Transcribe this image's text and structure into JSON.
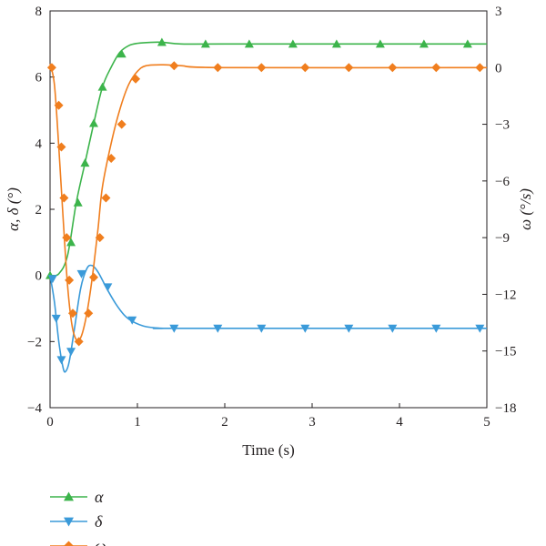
{
  "chart_data": {
    "type": "line",
    "xlabel": "Time (s)",
    "ylabel_left": "α, δ (°)",
    "ylabel_right": "ω (°/s)",
    "xlim": [
      0,
      5
    ],
    "ylim_left": [
      -4,
      8
    ],
    "ylim_right": [
      -18,
      3
    ],
    "x_ticks": [
      "0",
      "1",
      "2",
      "3",
      "4",
      "5"
    ],
    "y_left_ticks": [
      "−4",
      "−2",
      "0",
      "2",
      "4",
      "6",
      "8"
    ],
    "y_right_ticks": [
      "−18",
      "−15",
      "−12",
      "−9",
      "−6",
      "−3",
      "0",
      "3"
    ],
    "grid": false,
    "legend_position": "below plot, left",
    "series": [
      {
        "name": "α",
        "axis": "left",
        "color": "#3cb44b",
        "marker": "triangle-up",
        "curve": [
          [
            0,
            0
          ],
          [
            0.1,
            0.05
          ],
          [
            0.2,
            0.6
          ],
          [
            0.3,
            2.2
          ],
          [
            0.4,
            3.4
          ],
          [
            0.5,
            4.6
          ],
          [
            0.6,
            5.7
          ],
          [
            0.7,
            6.3
          ],
          [
            0.8,
            6.75
          ],
          [
            0.9,
            6.95
          ],
          [
            1.0,
            7.02
          ],
          [
            1.15,
            7.05
          ],
          [
            1.3,
            7.05
          ],
          [
            1.5,
            7.0
          ],
          [
            2.0,
            7.0
          ],
          [
            5.0,
            7.0
          ]
        ],
        "markers": [
          [
            0,
            0
          ],
          [
            0.24,
            1.0
          ],
          [
            0.32,
            2.2
          ],
          [
            0.4,
            3.4
          ],
          [
            0.5,
            4.6
          ],
          [
            0.6,
            5.7
          ],
          [
            0.82,
            6.7
          ],
          [
            1.28,
            7.05
          ],
          [
            1.78,
            7.0
          ],
          [
            2.28,
            7.0
          ],
          [
            2.78,
            7.0
          ],
          [
            3.28,
            7.0
          ],
          [
            3.78,
            7.0
          ],
          [
            4.28,
            7.0
          ],
          [
            4.78,
            7.0
          ]
        ]
      },
      {
        "name": "δ",
        "axis": "left",
        "color": "#3a9ad9",
        "marker": "triangle-down",
        "curve": [
          [
            0,
            0
          ],
          [
            0.05,
            -0.8
          ],
          [
            0.1,
            -2.0
          ],
          [
            0.15,
            -2.8
          ],
          [
            0.18,
            -2.9
          ],
          [
            0.22,
            -2.6
          ],
          [
            0.28,
            -1.6
          ],
          [
            0.35,
            -0.4
          ],
          [
            0.42,
            0.2
          ],
          [
            0.48,
            0.3
          ],
          [
            0.55,
            0.1
          ],
          [
            0.65,
            -0.4
          ],
          [
            0.75,
            -0.85
          ],
          [
            0.85,
            -1.2
          ],
          [
            0.95,
            -1.4
          ],
          [
            1.1,
            -1.55
          ],
          [
            1.3,
            -1.6
          ],
          [
            1.5,
            -1.6
          ],
          [
            5.0,
            -1.6
          ]
        ],
        "markers": [
          [
            0.03,
            -0.1
          ],
          [
            0.07,
            -1.3
          ],
          [
            0.13,
            -2.55
          ],
          [
            0.24,
            -2.3
          ],
          [
            0.36,
            0.05
          ],
          [
            0.66,
            -0.35
          ],
          [
            0.94,
            -1.35
          ],
          [
            1.42,
            -1.6
          ],
          [
            1.92,
            -1.6
          ],
          [
            2.42,
            -1.6
          ],
          [
            2.92,
            -1.6
          ],
          [
            3.42,
            -1.6
          ],
          [
            3.92,
            -1.6
          ],
          [
            4.42,
            -1.6
          ],
          [
            4.92,
            -1.6
          ]
        ]
      },
      {
        "name": "ω",
        "axis": "right",
        "color": "#f07e1e",
        "marker": "diamond",
        "curve": [
          [
            0,
            0.2
          ],
          [
            0.05,
            -0.9
          ],
          [
            0.1,
            -4.2
          ],
          [
            0.15,
            -8.0
          ],
          [
            0.2,
            -11.5
          ],
          [
            0.25,
            -13.6
          ],
          [
            0.3,
            -14.4
          ],
          [
            0.35,
            -14.3
          ],
          [
            0.4,
            -13.5
          ],
          [
            0.45,
            -12.2
          ],
          [
            0.5,
            -10.5
          ],
          [
            0.55,
            -8.5
          ],
          [
            0.6,
            -6.3
          ],
          [
            0.7,
            -4.0
          ],
          [
            0.8,
            -2.2
          ],
          [
            0.9,
            -0.9
          ],
          [
            1.0,
            -0.2
          ],
          [
            1.1,
            0.1
          ],
          [
            1.3,
            0.15
          ],
          [
            1.5,
            0.1
          ],
          [
            2.0,
            0.0
          ],
          [
            5.0,
            0.0
          ]
        ],
        "markers": [
          [
            0.02,
            0.0
          ],
          [
            0.1,
            -2.0
          ],
          [
            0.13,
            -4.2
          ],
          [
            0.16,
            -6.9
          ],
          [
            0.19,
            -9.0
          ],
          [
            0.22,
            -11.25
          ],
          [
            0.26,
            -13.0
          ],
          [
            0.33,
            -14.5
          ],
          [
            0.44,
            -13.0
          ],
          [
            0.5,
            -11.1
          ],
          [
            0.57,
            -9.0
          ],
          [
            0.64,
            -6.9
          ],
          [
            0.7,
            -4.8
          ],
          [
            0.82,
            -3.0
          ],
          [
            0.98,
            -0.6
          ],
          [
            1.42,
            0.1
          ],
          [
            1.92,
            0.0
          ],
          [
            2.42,
            0.0
          ],
          [
            2.92,
            0.0
          ],
          [
            3.42,
            0.0
          ],
          [
            3.92,
            0.0
          ],
          [
            4.42,
            0.0
          ],
          [
            4.92,
            0.0
          ]
        ]
      }
    ]
  }
}
